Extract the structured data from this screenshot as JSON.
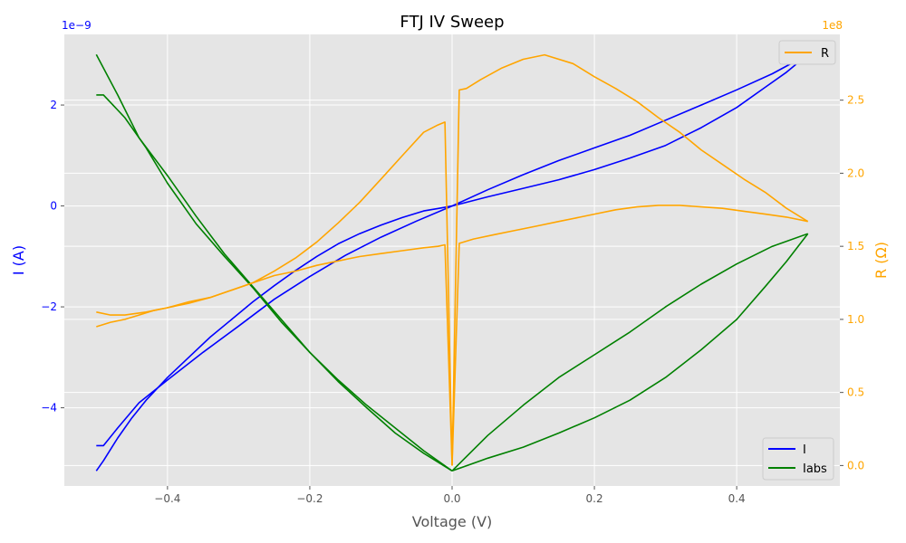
{
  "chart_data": {
    "type": "line",
    "title": "FTJ IV Sweep",
    "xlabel": "Voltage (V)",
    "ylabel_left": "I (A)",
    "ylabel_right": "R (Ω)",
    "left_scale_label": "1e−9",
    "right_scale_label": "1e8",
    "xlim": [
      -0.545,
      0.545
    ],
    "ylim_left": [
      -5.55,
      3.4
    ],
    "ylim_right": [
      -0.14,
      2.95
    ],
    "x_ticks": [
      -0.4,
      -0.2,
      0.0,
      0.2,
      0.4
    ],
    "x_tick_labels": [
      "−0.4",
      "−0.2",
      "0.0",
      "0.2",
      "0.4"
    ],
    "y_left_ticks": [
      -4,
      -2,
      0,
      2
    ],
    "y_left_tick_labels": [
      "−4",
      "−2",
      "0",
      "2"
    ],
    "y_right_ticks": [
      0.0,
      0.5,
      1.0,
      1.5,
      2.0,
      2.5
    ],
    "y_right_tick_labels": [
      "0.0",
      "0.5",
      "1.0",
      "1.5",
      "2.0",
      "2.5"
    ],
    "grid": true,
    "legend_left_position": "lower-right",
    "legend_right_position": "upper-right",
    "colors": {
      "I": "#0000ff",
      "Iabs": "#008000",
      "R": "#ffa500",
      "left_axis_text": "#0000ff",
      "right_axis_text": "#ffa500",
      "plot_background": "#e5e5e5",
      "grid": "#ffffff"
    },
    "series": [
      {
        "name": "I",
        "axis": "left",
        "color": "#0000ff",
        "segments": [
          {
            "x": [
              -0.5,
              -0.49,
              -0.47,
              -0.45,
              -0.43,
              -0.4,
              -0.37,
              -0.34,
              -0.31,
              -0.28,
              -0.25,
              -0.22,
              -0.19,
              -0.16,
              -0.13,
              -0.1,
              -0.07,
              -0.04,
              -0.02,
              0.0
            ],
            "y": [
              -5.25,
              -5.05,
              -4.6,
              -4.2,
              -3.85,
              -3.4,
              -3.0,
              -2.6,
              -2.25,
              -1.9,
              -1.58,
              -1.28,
              -1.0,
              -0.75,
              -0.55,
              -0.38,
              -0.23,
              -0.1,
              -0.05,
              0.0
            ]
          },
          {
            "x": [
              0.0,
              0.05,
              0.1,
              0.15,
              0.2,
              0.25,
              0.3,
              0.35,
              0.4,
              0.45,
              0.5
            ],
            "y": [
              0.0,
              0.32,
              0.62,
              0.9,
              1.15,
              1.4,
              1.7,
              2.0,
              2.3,
              2.62,
              3.0
            ]
          },
          {
            "x": [
              0.5,
              0.47,
              0.44,
              0.4,
              0.35,
              0.3,
              0.25,
              0.2,
              0.15,
              0.1,
              0.05,
              0.0
            ],
            "y": [
              3.0,
              2.65,
              2.35,
              1.95,
              1.55,
              1.2,
              0.95,
              0.72,
              0.52,
              0.35,
              0.18,
              0.0
            ]
          },
          {
            "x": [
              0.0,
              -0.05,
              -0.1,
              -0.15,
              -0.2,
              -0.25,
              -0.3,
              -0.35,
              -0.4,
              -0.44,
              -0.47,
              -0.49,
              -0.5
            ],
            "y": [
              0.0,
              -0.3,
              -0.62,
              -0.98,
              -1.4,
              -1.85,
              -2.38,
              -2.9,
              -3.45,
              -3.9,
              -4.4,
              -4.75,
              -4.75
            ]
          }
        ]
      },
      {
        "name": "Iabs",
        "axis": "left",
        "color": "#008000",
        "segments": [
          {
            "x": [
              -0.5,
              -0.47,
              -0.44,
              -0.4,
              -0.36,
              -0.32,
              -0.28,
              -0.24,
              -0.2,
              -0.16,
              -0.12,
              -0.08,
              -0.04,
              0.0
            ],
            "y": [
              3.0,
              2.2,
              1.35,
              0.6,
              -0.2,
              -0.95,
              -1.6,
              -2.25,
              -2.9,
              -3.45,
              -3.95,
              -4.4,
              -4.85,
              -5.25
            ]
          },
          {
            "x": [
              0.0,
              0.05,
              0.1,
              0.15,
              0.2,
              0.25,
              0.3,
              0.35,
              0.4,
              0.45,
              0.5
            ],
            "y": [
              -5.25,
              -4.55,
              -3.95,
              -3.4,
              -2.95,
              -2.5,
              -2.0,
              -1.55,
              -1.15,
              -0.8,
              -0.55
            ]
          },
          {
            "x": [
              0.5,
              0.47,
              0.44,
              0.4,
              0.35,
              0.3,
              0.25,
              0.2,
              0.15,
              0.1,
              0.05,
              0.0
            ],
            "y": [
              -0.55,
              -1.1,
              -1.6,
              -2.25,
              -2.85,
              -3.4,
              -3.85,
              -4.2,
              -4.5,
              -4.78,
              -5.0,
              -5.25
            ]
          },
          {
            "x": [
              0.0,
              -0.04,
              -0.08,
              -0.12,
              -0.16,
              -0.2,
              -0.24,
              -0.28,
              -0.32,
              -0.36,
              -0.4,
              -0.43,
              -0.46,
              -0.49,
              -0.5
            ],
            "y": [
              -5.25,
              -4.9,
              -4.5,
              -4.0,
              -3.48,
              -2.9,
              -2.3,
              -1.62,
              -1.0,
              -0.35,
              0.45,
              1.15,
              1.75,
              2.2,
              2.2
            ]
          }
        ]
      },
      {
        "name": "R",
        "axis": "right",
        "color": "#ffa500",
        "segments": [
          {
            "x": [
              -0.5,
              -0.48,
              -0.46,
              -0.44,
              -0.42,
              -0.4,
              -0.37,
              -0.34,
              -0.31,
              -0.28,
              -0.25,
              -0.22,
              -0.19,
              -0.16,
              -0.13,
              -0.1,
              -0.07,
              -0.04,
              -0.02,
              -0.01,
              0.0
            ],
            "y": [
              0.95,
              0.98,
              1.0,
              1.03,
              1.06,
              1.08,
              1.11,
              1.15,
              1.2,
              1.25,
              1.3,
              1.33,
              1.37,
              1.4,
              1.43,
              1.45,
              1.47,
              1.49,
              1.5,
              1.51,
              0.0
            ]
          },
          {
            "x": [
              0.0,
              0.01,
              0.03,
              0.06,
              0.09,
              0.12,
              0.15,
              0.18,
              0.2,
              0.23,
              0.26,
              0.29,
              0.32,
              0.35,
              0.38,
              0.41,
              0.44,
              0.47,
              0.5
            ],
            "y": [
              0.0,
              1.52,
              1.55,
              1.58,
              1.61,
              1.64,
              1.67,
              1.7,
              1.72,
              1.75,
              1.77,
              1.78,
              1.78,
              1.77,
              1.76,
              1.74,
              1.72,
              1.7,
              1.67
            ]
          },
          {
            "x": [
              0.5,
              0.47,
              0.44,
              0.41,
              0.38,
              0.35,
              0.32,
              0.29,
              0.26,
              0.23,
              0.2,
              0.17,
              0.13,
              0.1,
              0.07,
              0.04,
              0.02,
              0.01,
              0.0
            ],
            "y": [
              1.67,
              1.76,
              1.87,
              1.96,
              2.06,
              2.16,
              2.28,
              2.38,
              2.49,
              2.58,
              2.66,
              2.75,
              2.81,
              2.78,
              2.72,
              2.64,
              2.58,
              2.57,
              0.0
            ]
          },
          {
            "x": [
              0.0,
              -0.01,
              -0.02,
              -0.04,
              -0.07,
              -0.1,
              -0.13,
              -0.16,
              -0.19,
              -0.22,
              -0.25,
              -0.28,
              -0.31,
              -0.34,
              -0.37,
              -0.4,
              -0.43,
              -0.46,
              -0.48,
              -0.5
            ],
            "y": [
              0.0,
              2.35,
              2.33,
              2.28,
              2.12,
              1.96,
              1.8,
              1.66,
              1.53,
              1.42,
              1.33,
              1.25,
              1.2,
              1.15,
              1.12,
              1.08,
              1.05,
              1.03,
              1.03,
              1.05
            ]
          }
        ]
      }
    ],
    "legend_left": [
      "I",
      "Iabs"
    ],
    "legend_right": [
      "R"
    ]
  }
}
